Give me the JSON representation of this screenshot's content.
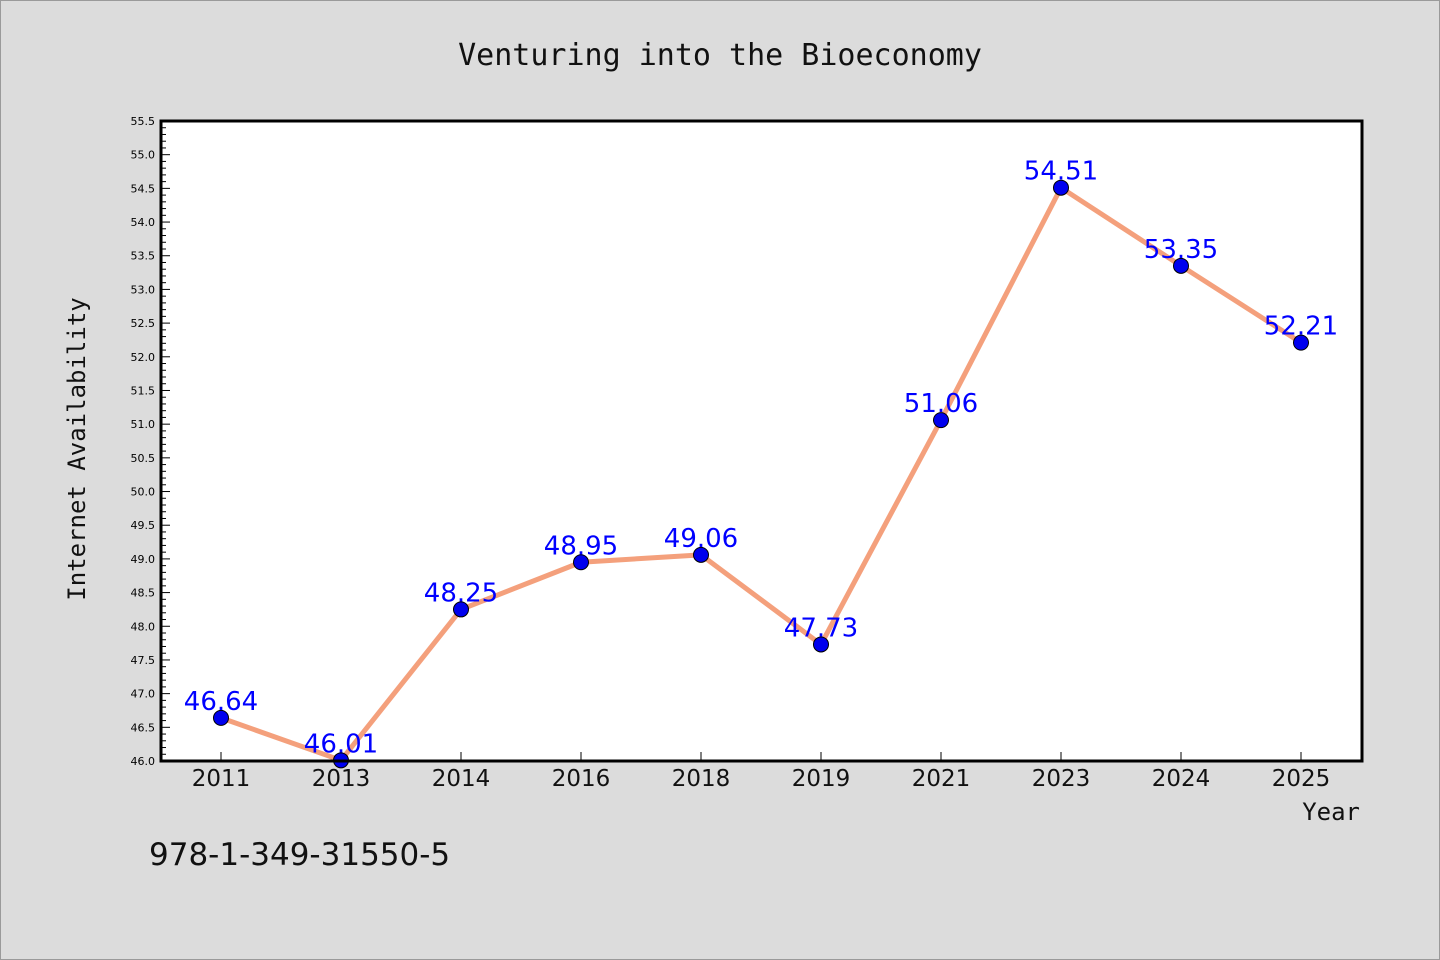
{
  "chart_data": {
    "type": "line",
    "title": "Venturing into the Bioeconomy",
    "xlabel": "Year",
    "ylabel": "Internet Availability",
    "categories": [
      "2011",
      "2013",
      "2014",
      "2016",
      "2018",
      "2019",
      "2021",
      "2023",
      "2024",
      "2025"
    ],
    "series": [
      {
        "values": [
          46.64,
          46.01,
          48.25,
          48.95,
          49.06,
          47.73,
          51.06,
          54.51,
          53.35,
          52.21
        ],
        "labels": [
          "46.64",
          "46.01",
          "48.25",
          "48.95",
          "49.06",
          "47.73",
          "51.06",
          "54.51",
          "53.35",
          "52.21"
        ],
        "line_color": "#f4a07c",
        "marker_color": "#0000ee"
      }
    ],
    "ylim": [
      46.0,
      55.5
    ],
    "yticks": [
      "46.0",
      "46.5",
      "47.0",
      "47.5",
      "48.0",
      "48.5",
      "49.0",
      "49.5",
      "50.0",
      "50.5",
      "51.0",
      "51.5",
      "52.0",
      "52.5",
      "53.0",
      "53.5",
      "54.0",
      "54.5",
      "55.0",
      "55.5"
    ],
    "grid": false,
    "legend": "none"
  },
  "footer": {
    "isbn": "978-1-349-31550-5"
  }
}
